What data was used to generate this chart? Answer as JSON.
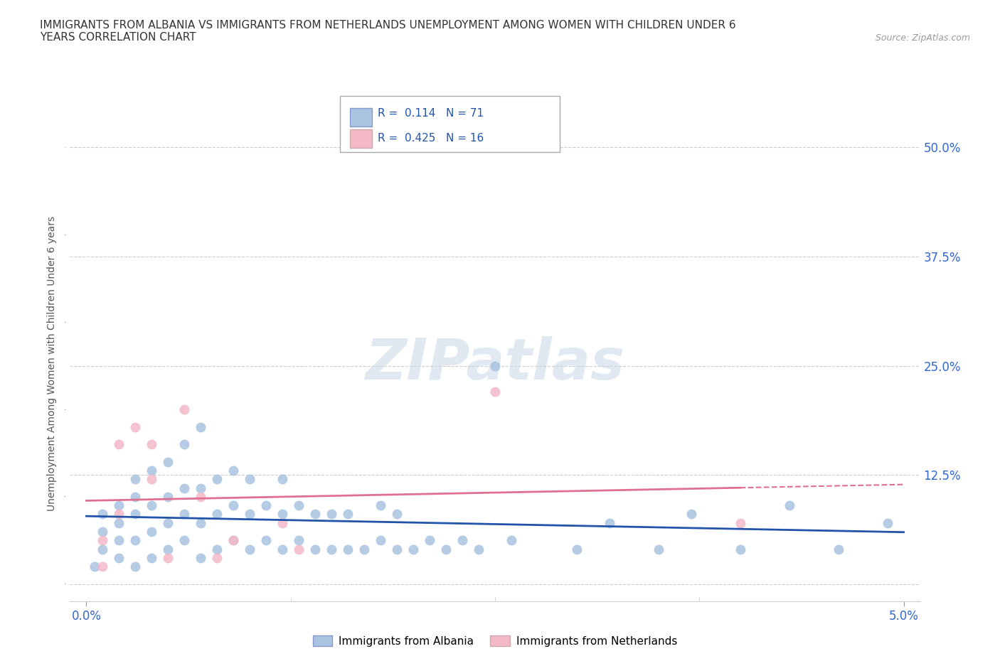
{
  "title": "IMMIGRANTS FROM ALBANIA VS IMMIGRANTS FROM NETHERLANDS UNEMPLOYMENT AMONG WOMEN WITH CHILDREN UNDER 6\nYEARS CORRELATION CHART",
  "source": "Source: ZipAtlas.com",
  "legend1_R": "0.114",
  "legend1_N": "71",
  "legend2_R": "0.425",
  "legend2_N": "16",
  "watermark": "ZIPatlas",
  "albania_color": "#a8c4e0",
  "netherlands_color": "#f4b8c8",
  "albania_line_color": "#2255aa",
  "netherlands_line_color": "#e07090",
  "albania_scatter": [
    [
      0.0005,
      0.02
    ],
    [
      0.001,
      0.04
    ],
    [
      0.001,
      0.06
    ],
    [
      0.001,
      0.08
    ],
    [
      0.002,
      0.03
    ],
    [
      0.002,
      0.05
    ],
    [
      0.002,
      0.07
    ],
    [
      0.002,
      0.09
    ],
    [
      0.003,
      0.02
    ],
    [
      0.003,
      0.05
    ],
    [
      0.003,
      0.08
    ],
    [
      0.003,
      0.1
    ],
    [
      0.003,
      0.12
    ],
    [
      0.004,
      0.03
    ],
    [
      0.004,
      0.06
    ],
    [
      0.004,
      0.09
    ],
    [
      0.004,
      0.13
    ],
    [
      0.005,
      0.04
    ],
    [
      0.005,
      0.07
    ],
    [
      0.005,
      0.1
    ],
    [
      0.005,
      0.14
    ],
    [
      0.006,
      0.05
    ],
    [
      0.006,
      0.08
    ],
    [
      0.006,
      0.11
    ],
    [
      0.006,
      0.16
    ],
    [
      0.007,
      0.03
    ],
    [
      0.007,
      0.07
    ],
    [
      0.007,
      0.11
    ],
    [
      0.007,
      0.18
    ],
    [
      0.008,
      0.04
    ],
    [
      0.008,
      0.08
    ],
    [
      0.008,
      0.12
    ],
    [
      0.009,
      0.05
    ],
    [
      0.009,
      0.09
    ],
    [
      0.009,
      0.13
    ],
    [
      0.01,
      0.04
    ],
    [
      0.01,
      0.08
    ],
    [
      0.01,
      0.12
    ],
    [
      0.011,
      0.05
    ],
    [
      0.011,
      0.09
    ],
    [
      0.012,
      0.04
    ],
    [
      0.012,
      0.08
    ],
    [
      0.012,
      0.12
    ],
    [
      0.013,
      0.05
    ],
    [
      0.013,
      0.09
    ],
    [
      0.014,
      0.04
    ],
    [
      0.014,
      0.08
    ],
    [
      0.015,
      0.04
    ],
    [
      0.015,
      0.08
    ],
    [
      0.016,
      0.04
    ],
    [
      0.016,
      0.08
    ],
    [
      0.017,
      0.04
    ],
    [
      0.018,
      0.05
    ],
    [
      0.018,
      0.09
    ],
    [
      0.019,
      0.04
    ],
    [
      0.019,
      0.08
    ],
    [
      0.02,
      0.04
    ],
    [
      0.021,
      0.05
    ],
    [
      0.022,
      0.04
    ],
    [
      0.023,
      0.05
    ],
    [
      0.024,
      0.04
    ],
    [
      0.025,
      0.25
    ],
    [
      0.026,
      0.05
    ],
    [
      0.03,
      0.04
    ],
    [
      0.032,
      0.07
    ],
    [
      0.035,
      0.04
    ],
    [
      0.037,
      0.08
    ],
    [
      0.04,
      0.04
    ],
    [
      0.043,
      0.09
    ],
    [
      0.046,
      0.04
    ],
    [
      0.049,
      0.07
    ]
  ],
  "netherlands_scatter": [
    [
      0.001,
      0.02
    ],
    [
      0.001,
      0.05
    ],
    [
      0.002,
      0.08
    ],
    [
      0.002,
      0.16
    ],
    [
      0.003,
      0.18
    ],
    [
      0.004,
      0.12
    ],
    [
      0.004,
      0.16
    ],
    [
      0.005,
      0.03
    ],
    [
      0.006,
      0.2
    ],
    [
      0.007,
      0.1
    ],
    [
      0.008,
      0.03
    ],
    [
      0.009,
      0.05
    ],
    [
      0.012,
      0.07
    ],
    [
      0.013,
      0.04
    ],
    [
      0.025,
      0.22
    ],
    [
      0.04,
      0.07
    ]
  ],
  "xlim": [
    0.0,
    0.05
  ],
  "ylim": [
    0.0,
    0.525
  ],
  "yticks": [
    0.0,
    0.125,
    0.25,
    0.375,
    0.5
  ],
  "ytick_labels": [
    "",
    "12.5%",
    "25.0%",
    "37.5%",
    "50.0%"
  ],
  "xtick_labels": [
    "0.0%",
    "5.0%"
  ]
}
